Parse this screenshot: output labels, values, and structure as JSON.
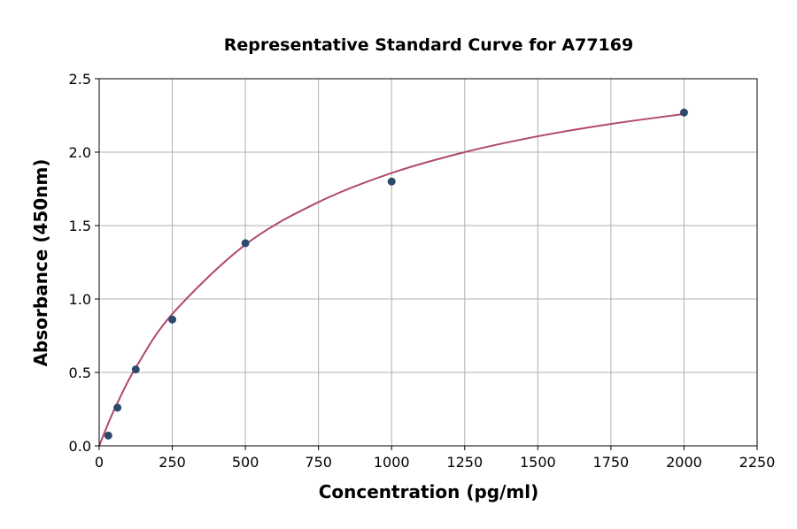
{
  "chart_data": {
    "type": "scatter",
    "title": "Representative Standard Curve for A77169",
    "xlabel": "Concentration (pg/ml)",
    "ylabel": "Absorbance (450nm)",
    "xlim": [
      0,
      2250
    ],
    "ylim": [
      0,
      2.5
    ],
    "xticks": [
      0,
      250,
      500,
      750,
      1000,
      1250,
      1500,
      1750,
      2000,
      2250
    ],
    "yticks": [
      0.0,
      0.5,
      1.0,
      1.5,
      2.0,
      2.5
    ],
    "xtick_labels": [
      "0",
      "250",
      "500",
      "750",
      "1000",
      "1250",
      "1500",
      "1750",
      "2000",
      "2250"
    ],
    "ytick_labels": [
      "0.0",
      "0.5",
      "1.0",
      "1.5",
      "2.0",
      "2.5"
    ],
    "grid": true,
    "points": {
      "x": [
        31.25,
        62.5,
        125,
        250,
        500,
        1000,
        2000
      ],
      "y": [
        0.07,
        0.26,
        0.52,
        0.86,
        1.38,
        1.8,
        2.27
      ],
      "color": "#2e4a6b"
    },
    "fit_curve": {
      "x": [
        0,
        31.25,
        62.5,
        125,
        250,
        500,
        750,
        1000,
        1250,
        1500,
        1750,
        2000
      ],
      "y": [
        0,
        0.154,
        0.293,
        0.532,
        0.898,
        1.37,
        1.66,
        1.858,
        2.0,
        2.108,
        2.192,
        2.26
      ],
      "color": "#b04a6e"
    }
  }
}
